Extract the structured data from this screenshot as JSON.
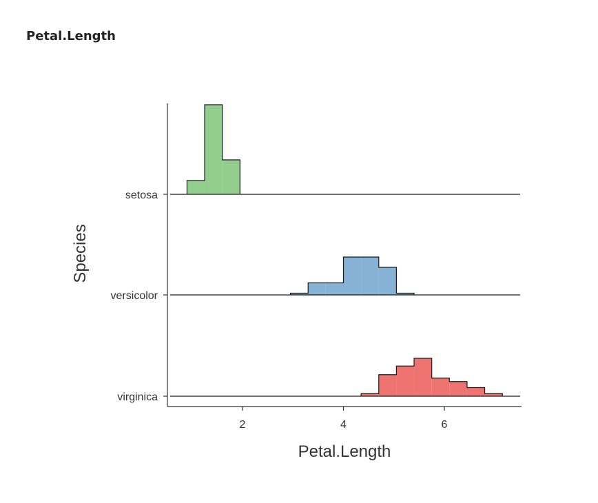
{
  "page": {
    "title": "Petal.Length"
  },
  "chart_data": {
    "type": "histogram-ridgeline",
    "xlabel": "Petal.Length",
    "ylabel": "Species",
    "xlim": [
      0.6,
      7.5
    ],
    "x_ticks": [
      2,
      4,
      6
    ],
    "grid": false,
    "legend": "none",
    "categories": [
      "setosa",
      "versicolor",
      "virginica"
    ],
    "series": [
      {
        "name": "setosa",
        "color": "#93CE8E",
        "bins": [
          {
            "x0": 0.9,
            "x1": 1.25,
            "value": 0.08
          },
          {
            "x0": 1.25,
            "x1": 1.6,
            "value": 0.52
          },
          {
            "x0": 1.6,
            "x1": 1.95,
            "value": 0.2
          }
        ]
      },
      {
        "name": "versicolor",
        "color": "#86B2D6",
        "bins": [
          {
            "x0": 2.95,
            "x1": 3.3,
            "value": 0.01
          },
          {
            "x0": 3.3,
            "x1": 3.65,
            "value": 0.07
          },
          {
            "x0": 3.65,
            "x1": 4.0,
            "value": 0.07
          },
          {
            "x0": 4.0,
            "x1": 4.35,
            "value": 0.22
          },
          {
            "x0": 4.35,
            "x1": 4.7,
            "value": 0.22
          },
          {
            "x0": 4.7,
            "x1": 5.05,
            "value": 0.16
          },
          {
            "x0": 5.05,
            "x1": 5.4,
            "value": 0.01
          }
        ]
      },
      {
        "name": "virginica",
        "color": "#EE7472",
        "bins": [
          {
            "x0": 4.35,
            "x1": 4.7,
            "value": 0.015
          },
          {
            "x0": 4.7,
            "x1": 5.05,
            "value": 0.125
          },
          {
            "x0": 5.05,
            "x1": 5.4,
            "value": 0.175
          },
          {
            "x0": 5.4,
            "x1": 5.75,
            "value": 0.22
          },
          {
            "x0": 5.75,
            "x1": 6.1,
            "value": 0.105
          },
          {
            "x0": 6.1,
            "x1": 6.45,
            "value": 0.085
          },
          {
            "x0": 6.45,
            "x1": 6.8,
            "value": 0.05
          },
          {
            "x0": 6.8,
            "x1": 7.15,
            "value": 0.015
          }
        ]
      }
    ]
  }
}
